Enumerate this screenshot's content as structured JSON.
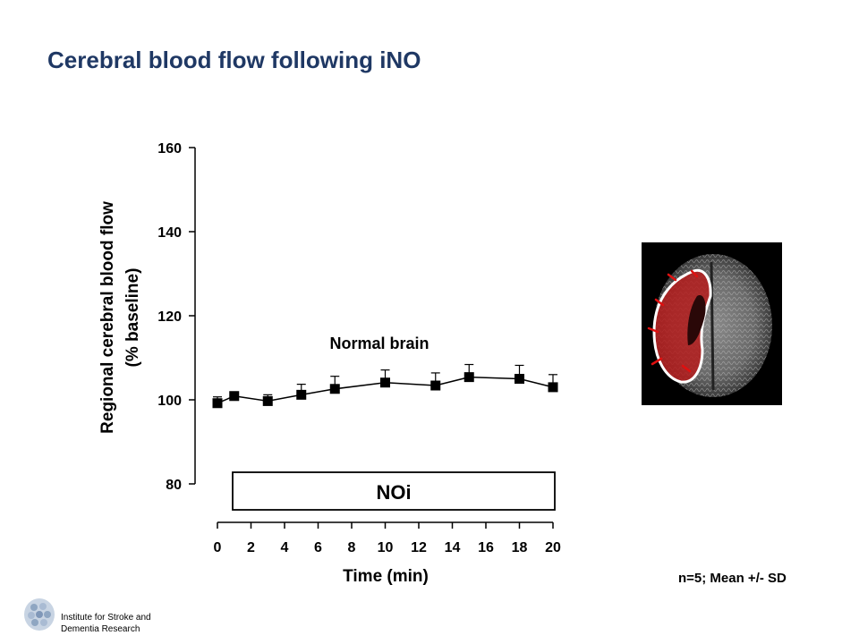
{
  "slide": {
    "title": "Cerebral blood flow following iNO",
    "footnote": "n=5; Mean +/- SD"
  },
  "institute": {
    "line1": "Institute for Stroke and",
    "line2": "Dementia Research"
  },
  "brain_image": {
    "overlay_color": "#b41c1c",
    "marker_color": "#e01010"
  },
  "chart_data": {
    "type": "line",
    "title": "",
    "xlabel": "Time (min)",
    "ylabel_lines": [
      "Regional cerebral blood flow",
      "(% baseline)"
    ],
    "xlim": [
      0,
      20
    ],
    "ylim": [
      80,
      160
    ],
    "xticks": [
      0,
      2,
      4,
      6,
      8,
      10,
      12,
      14,
      16,
      18,
      20
    ],
    "yticks": [
      80,
      100,
      120,
      140,
      160
    ],
    "grid": false,
    "annotation": "Normal brain",
    "treatment_label": "NOi",
    "treatment_span": [
      1,
      20
    ],
    "series": [
      {
        "x": [
          0,
          1,
          3,
          5,
          7,
          10,
          13,
          15,
          18,
          20
        ],
        "y": [
          99.2,
          100.9,
          99.7,
          101.2,
          102.6,
          104.1,
          103.4,
          105.4,
          105.0,
          103.0
        ],
        "error": [
          1.5,
          1.0,
          1.5,
          2.5,
          3.0,
          3.0,
          3.0,
          3.0,
          3.2,
          3.0
        ],
        "color": "#000000",
        "marker": "square"
      }
    ]
  }
}
